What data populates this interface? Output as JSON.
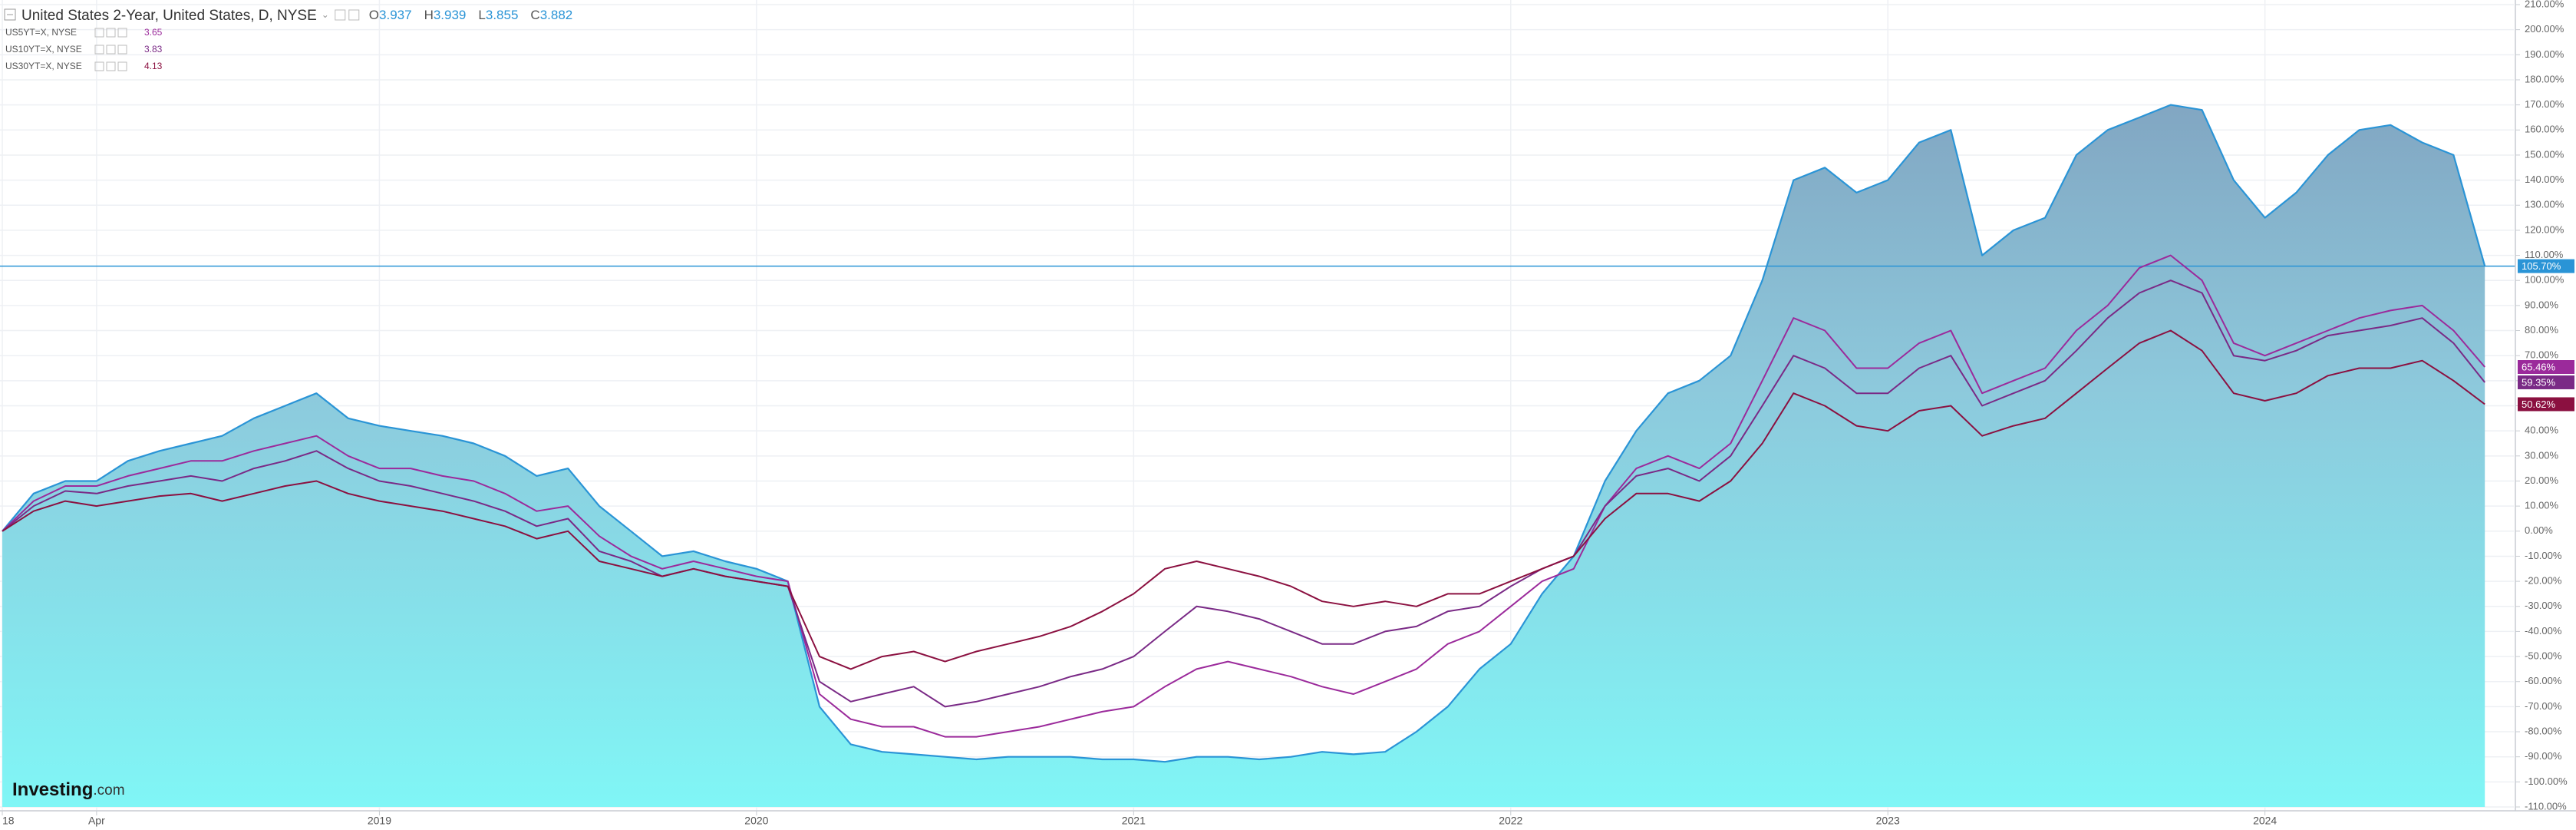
{
  "chart_data": {
    "type": "line",
    "title": "United States 2-Year, United States, D, NYSE",
    "ohlc": [
      {
        "label": "O",
        "value": 3.937
      },
      {
        "label": "H",
        "value": 3.939
      },
      {
        "label": "L",
        "value": 3.855
      },
      {
        "label": "C",
        "value": 3.882
      }
    ],
    "brand": "Investing",
    "brand_suffix": ".com",
    "x": [
      2018.0,
      2018.083,
      2018.167,
      2018.25,
      2018.333,
      2018.417,
      2018.5,
      2018.583,
      2018.667,
      2018.75,
      2018.833,
      2018.917,
      2019.0,
      2019.083,
      2019.167,
      2019.25,
      2019.333,
      2019.417,
      2019.5,
      2019.583,
      2019.667,
      2019.75,
      2019.833,
      2019.917,
      2020.0,
      2020.083,
      2020.167,
      2020.25,
      2020.333,
      2020.417,
      2020.5,
      2020.583,
      2020.667,
      2020.75,
      2020.833,
      2020.917,
      2021.0,
      2021.083,
      2021.167,
      2021.25,
      2021.333,
      2021.417,
      2021.5,
      2021.583,
      2021.667,
      2021.75,
      2021.833,
      2021.917,
      2022.0,
      2022.083,
      2022.167,
      2022.25,
      2022.333,
      2022.417,
      2022.5,
      2022.583,
      2022.667,
      2022.75,
      2022.833,
      2022.917,
      2023.0,
      2023.083,
      2023.167,
      2023.25,
      2023.333,
      2023.417,
      2023.5,
      2023.583,
      2023.667,
      2023.75,
      2023.833,
      2023.917,
      2024.0,
      2024.083,
      2024.167,
      2024.25,
      2024.333,
      2024.417,
      2024.5,
      2024.583
    ],
    "series": [
      {
        "name": "United States 2-Year",
        "color": "#2a94d6",
        "fill": true,
        "last_label": "105.70%",
        "values": [
          0,
          15,
          20,
          20,
          28,
          32,
          35,
          38,
          45,
          50,
          55,
          45,
          42,
          40,
          38,
          35,
          30,
          22,
          25,
          10,
          0,
          -10,
          -8,
          -12,
          -15,
          -20,
          -70,
          -85,
          -88,
          -89,
          -90,
          -91,
          -90,
          -90,
          -90,
          -91,
          -91,
          -92,
          -90,
          -90,
          -91,
          -90,
          -88,
          -89,
          -88,
          -80,
          -70,
          -55,
          -45,
          -25,
          -10,
          20,
          40,
          55,
          60,
          70,
          100,
          140,
          145,
          135,
          140,
          155,
          160,
          110,
          120,
          125,
          150,
          160,
          165,
          170,
          168,
          140,
          125,
          135,
          150,
          160,
          162,
          155,
          150,
          105.7
        ]
      },
      {
        "name": "US5YT=X, NYSE",
        "legend_value": 3.65,
        "color": "#9b2a9b",
        "last_label": "65.46%",
        "values": [
          0,
          12,
          18,
          18,
          22,
          25,
          28,
          28,
          32,
          35,
          38,
          30,
          25,
          25,
          22,
          20,
          15,
          8,
          10,
          -2,
          -10,
          -15,
          -12,
          -15,
          -18,
          -20,
          -65,
          -75,
          -78,
          -78,
          -82,
          -82,
          -80,
          -78,
          -75,
          -72,
          -70,
          -62,
          -55,
          -52,
          -55,
          -58,
          -62,
          -65,
          -60,
          -55,
          -45,
          -40,
          -30,
          -20,
          -15,
          10,
          25,
          30,
          25,
          35,
          60,
          85,
          80,
          65,
          65,
          75,
          80,
          55,
          60,
          65,
          80,
          90,
          105,
          110,
          100,
          75,
          70,
          75,
          80,
          85,
          88,
          90,
          80,
          65.46
        ]
      },
      {
        "name": "US10YT=X, NYSE",
        "legend_value": 3.83,
        "color": "#7a2a86",
        "last_label": "59.35%",
        "values": [
          0,
          10,
          16,
          15,
          18,
          20,
          22,
          20,
          25,
          28,
          32,
          25,
          20,
          18,
          15,
          12,
          8,
          2,
          5,
          -8,
          -12,
          -18,
          -15,
          -18,
          -20,
          -22,
          -60,
          -68,
          -65,
          -62,
          -70,
          -68,
          -65,
          -62,
          -58,
          -55,
          -50,
          -40,
          -30,
          -32,
          -35,
          -40,
          -45,
          -45,
          -40,
          -38,
          -32,
          -30,
          -22,
          -15,
          -10,
          10,
          22,
          25,
          20,
          30,
          50,
          70,
          65,
          55,
          55,
          65,
          70,
          50,
          55,
          60,
          72,
          85,
          95,
          100,
          95,
          70,
          68,
          72,
          78,
          80,
          82,
          85,
          75,
          59.35
        ]
      },
      {
        "name": "US30YT=X, NYSE",
        "legend_value": 4.13,
        "color": "#8b1040",
        "last_label": "50.62%",
        "values": [
          0,
          8,
          12,
          10,
          12,
          14,
          15,
          12,
          15,
          18,
          20,
          15,
          12,
          10,
          8,
          5,
          2,
          -3,
          0,
          -12,
          -15,
          -18,
          -15,
          -18,
          -20,
          -22,
          -50,
          -55,
          -50,
          -48,
          -52,
          -48,
          -45,
          -42,
          -38,
          -32,
          -25,
          -15,
          -12,
          -15,
          -18,
          -22,
          -28,
          -30,
          -28,
          -30,
          -25,
          -25,
          -20,
          -15,
          -10,
          5,
          15,
          15,
          12,
          20,
          35,
          55,
          50,
          42,
          40,
          48,
          50,
          38,
          42,
          45,
          55,
          65,
          75,
          80,
          72,
          55,
          52,
          55,
          62,
          65,
          65,
          68,
          60,
          50.62
        ]
      }
    ],
    "xlim": [
      2018,
      2024.66
    ],
    "xticks": [
      {
        "value": 2018,
        "label": "18"
      },
      {
        "value": 2018.25,
        "label": "Apr"
      },
      2019,
      2020,
      2021,
      2022,
      2023,
      2024
    ],
    "ylim": [
      -110,
      210
    ],
    "yticks": [
      {
        "value": -110,
        "label": "-110.00%"
      },
      {
        "value": -100,
        "label": "-100.00%"
      },
      {
        "value": -90,
        "label": "-90.00%"
      },
      {
        "value": -80,
        "label": "-80.00%"
      },
      {
        "value": -70,
        "label": "-70.00%"
      },
      {
        "value": -60,
        "label": "-60.00%"
      },
      {
        "value": -50,
        "label": "-50.00%"
      },
      {
        "value": -40,
        "label": "-40.00%"
      },
      {
        "value": -30,
        "label": "-30.00%"
      },
      {
        "value": -20,
        "label": "-20.00%"
      },
      {
        "value": -10,
        "label": "-10.00%"
      },
      {
        "value": 0,
        "label": "0.00%"
      },
      {
        "value": 10,
        "label": "10.00%"
      },
      {
        "value": 20,
        "label": "20.00%"
      },
      {
        "value": 30,
        "label": "30.00%"
      },
      {
        "value": 40,
        "label": "40.00%"
      },
      {
        "value": 50,
        "label": "50.00%"
      },
      {
        "value": 60,
        "label": "60.00%"
      },
      {
        "value": 70,
        "label": "70.00%"
      },
      {
        "value": 80,
        "label": "80.00%"
      },
      {
        "value": 90,
        "label": "90.00%"
      },
      {
        "value": 100,
        "label": "100.00%"
      },
      {
        "value": 110,
        "label": "110.00%"
      },
      {
        "value": 120,
        "label": "120.00%"
      },
      {
        "value": 130,
        "label": "130.00%"
      },
      {
        "value": 140,
        "label": "140.00%"
      },
      {
        "value": 150,
        "label": "150.00%"
      },
      {
        "value": 160,
        "label": "160.00%"
      },
      {
        "value": 170,
        "label": "170.00%"
      },
      {
        "value": 180,
        "label": "180.00%"
      },
      {
        "value": 190,
        "label": "190.00%"
      },
      {
        "value": 200,
        "label": "200.00%"
      },
      {
        "value": 210,
        "label": "210.00%"
      }
    ],
    "grid": true
  }
}
